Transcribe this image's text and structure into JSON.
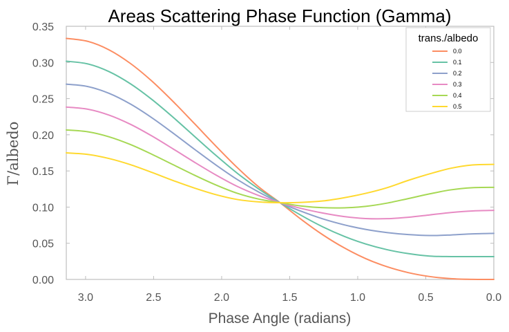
{
  "chart_data": {
    "type": "line",
    "title": "Areas Scattering Phase Function (Gamma)",
    "xlabel": "Phase Angle (radians)",
    "ylabel": "Γ/albedo",
    "xlim": [
      3.14159,
      0.0
    ],
    "ylim": [
      0.0,
      0.35
    ],
    "x_ticks": [
      "3.0",
      "2.5",
      "2.0",
      "1.5",
      "1.0",
      "0.5",
      "0.0"
    ],
    "x_tick_values": [
      3.0,
      2.5,
      2.0,
      1.5,
      1.0,
      0.5,
      0.0
    ],
    "y_ticks": [
      "0.00",
      "0.05",
      "0.10",
      "0.15",
      "0.20",
      "0.25",
      "0.30",
      "0.35"
    ],
    "y_tick_values": [
      0.0,
      0.05,
      0.1,
      0.15,
      0.2,
      0.25,
      0.3,
      0.35
    ],
    "grid": false,
    "legend": {
      "title": "trans./albedo",
      "placement": "top-right"
    },
    "x": [
      3.1416,
      2.9845,
      2.8274,
      2.6704,
      2.5133,
      2.3562,
      2.1991,
      2.042,
      1.885,
      1.7279,
      1.5708,
      1.4137,
      1.2566,
      1.0996,
      0.9425,
      0.7854,
      0.6283,
      0.4712,
      0.3142,
      0.1571,
      0.0
    ],
    "series": [
      {
        "name": "0.0",
        "color": "#fc8d62",
        "values": [
          0.3333,
          0.3292,
          0.3174,
          0.2986,
          0.2743,
          0.2459,
          0.2153,
          0.1843,
          0.1546,
          0.128,
          0.1061,
          0.0828,
          0.0617,
          0.0437,
          0.0289,
          0.0176,
          0.0094,
          0.004,
          0.0011,
          0.0001,
          0.0
        ]
      },
      {
        "name": "0.1",
        "color": "#66c2a5",
        "values": [
          0.3017,
          0.298,
          0.2873,
          0.2705,
          0.2489,
          0.2241,
          0.1977,
          0.1715,
          0.1468,
          0.1251,
          0.1061,
          0.0884,
          0.0727,
          0.0596,
          0.0491,
          0.0412,
          0.0357,
          0.0323,
          0.0316,
          0.0316,
          0.0316
        ]
      },
      {
        "name": "0.2",
        "color": "#8da0cb",
        "values": [
          0.27,
          0.2667,
          0.2573,
          0.2425,
          0.2236,
          0.2022,
          0.1799,
          0.1582,
          0.1381,
          0.1208,
          0.1061,
          0.0941,
          0.0837,
          0.0755,
          0.0692,
          0.0648,
          0.062,
          0.0607,
          0.0615,
          0.063,
          0.0637
        ]
      },
      {
        "name": "0.3",
        "color": "#e78ac3",
        "values": [
          0.2383,
          0.2354,
          0.2272,
          0.2145,
          0.1984,
          0.1804,
          0.162,
          0.1444,
          0.1286,
          0.116,
          0.1061,
          0.0981,
          0.0918,
          0.0869,
          0.0842,
          0.084,
          0.086,
          0.0892,
          0.0925,
          0.0947,
          0.0955
        ]
      },
      {
        "name": "0.4",
        "color": "#a6d854",
        "values": [
          0.2067,
          0.2042,
          0.1972,
          0.1865,
          0.1731,
          0.1586,
          0.1441,
          0.1306,
          0.1191,
          0.1111,
          0.1061,
          0.1015,
          0.0992,
          0.099,
          0.101,
          0.1055,
          0.1118,
          0.1183,
          0.1239,
          0.1268,
          0.1273
        ]
      },
      {
        "name": "0.5",
        "color": "#ffd92f",
        "values": [
          0.175,
          0.1729,
          0.1672,
          0.1587,
          0.148,
          0.1367,
          0.1263,
          0.1172,
          0.1105,
          0.1072,
          0.1061,
          0.1065,
          0.1085,
          0.113,
          0.119,
          0.1268,
          0.137,
          0.146,
          0.1538,
          0.1583,
          0.1591
        ]
      }
    ]
  }
}
